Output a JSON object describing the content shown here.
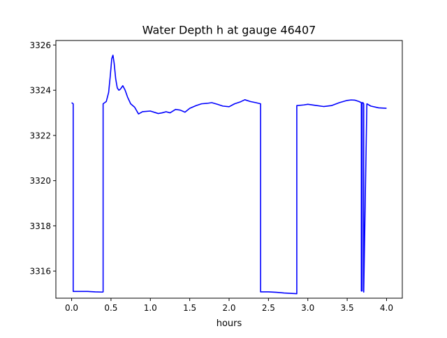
{
  "chart_data": {
    "type": "line",
    "title": "Water Depth h at gauge 46407",
    "xlabel": "hours",
    "ylabel": "",
    "xlim": [
      -0.2,
      4.2
    ],
    "ylim": [
      3314.8,
      3326.2
    ],
    "x_ticks": [
      0.0,
      0.5,
      1.0,
      1.5,
      2.0,
      2.5,
      3.0,
      3.5,
      4.0
    ],
    "x_tick_labels": [
      "0.0",
      "0.5",
      "1.0",
      "1.5",
      "2.0",
      "2.5",
      "3.0",
      "3.5",
      "4.0"
    ],
    "y_ticks": [
      3316,
      3318,
      3320,
      3322,
      3324,
      3326
    ],
    "y_tick_labels": [
      "3316",
      "3318",
      "3320",
      "3322",
      "3324",
      "3326"
    ],
    "grid": false,
    "legend": "none",
    "series": [
      {
        "color": "#0000ff",
        "x": [
          0.0,
          0.02,
          0.02,
          0.1,
          0.2,
          0.3,
          0.39,
          0.4,
          0.4,
          0.44,
          0.47,
          0.49,
          0.51,
          0.525,
          0.54,
          0.56,
          0.58,
          0.6,
          0.62,
          0.65,
          0.68,
          0.71,
          0.75,
          0.8,
          0.85,
          0.9,
          1.0,
          1.1,
          1.15,
          1.2,
          1.25,
          1.32,
          1.38,
          1.44,
          1.5,
          1.58,
          1.65,
          1.72,
          1.78,
          1.85,
          1.92,
          2.0,
          2.07,
          2.14,
          2.2,
          2.27,
          2.34,
          2.4,
          2.4,
          2.5,
          2.6,
          2.7,
          2.8,
          2.86,
          2.86,
          2.95,
          3.0,
          3.1,
          3.2,
          3.3,
          3.4,
          3.5,
          3.55,
          3.6,
          3.65,
          3.68,
          3.68,
          3.69,
          3.69,
          3.7,
          3.71,
          3.71,
          3.75,
          3.8,
          3.9,
          4.0
        ],
        "y": [
          3323.45,
          3323.4,
          3315.1,
          3315.1,
          3315.1,
          3315.08,
          3315.07,
          3315.08,
          3323.4,
          3323.5,
          3323.9,
          3324.6,
          3325.4,
          3325.55,
          3325.2,
          3324.5,
          3324.1,
          3324.0,
          3324.05,
          3324.2,
          3324.0,
          3323.7,
          3323.4,
          3323.25,
          3322.95,
          3323.05,
          3323.08,
          3322.97,
          3323.0,
          3323.05,
          3323.0,
          3323.15,
          3323.12,
          3323.03,
          3323.2,
          3323.32,
          3323.4,
          3323.42,
          3323.45,
          3323.38,
          3323.3,
          3323.27,
          3323.4,
          3323.48,
          3323.58,
          3323.5,
          3323.45,
          3323.4,
          3315.08,
          3315.08,
          3315.06,
          3315.03,
          3315.01,
          3315.0,
          3323.32,
          3323.35,
          3323.38,
          3323.33,
          3323.28,
          3323.32,
          3323.45,
          3323.55,
          3323.57,
          3323.56,
          3323.5,
          3323.45,
          3315.12,
          3315.12,
          3323.45,
          3323.45,
          3323.4,
          3315.07,
          3323.4,
          3323.3,
          3323.22,
          3323.2
        ]
      }
    ]
  }
}
